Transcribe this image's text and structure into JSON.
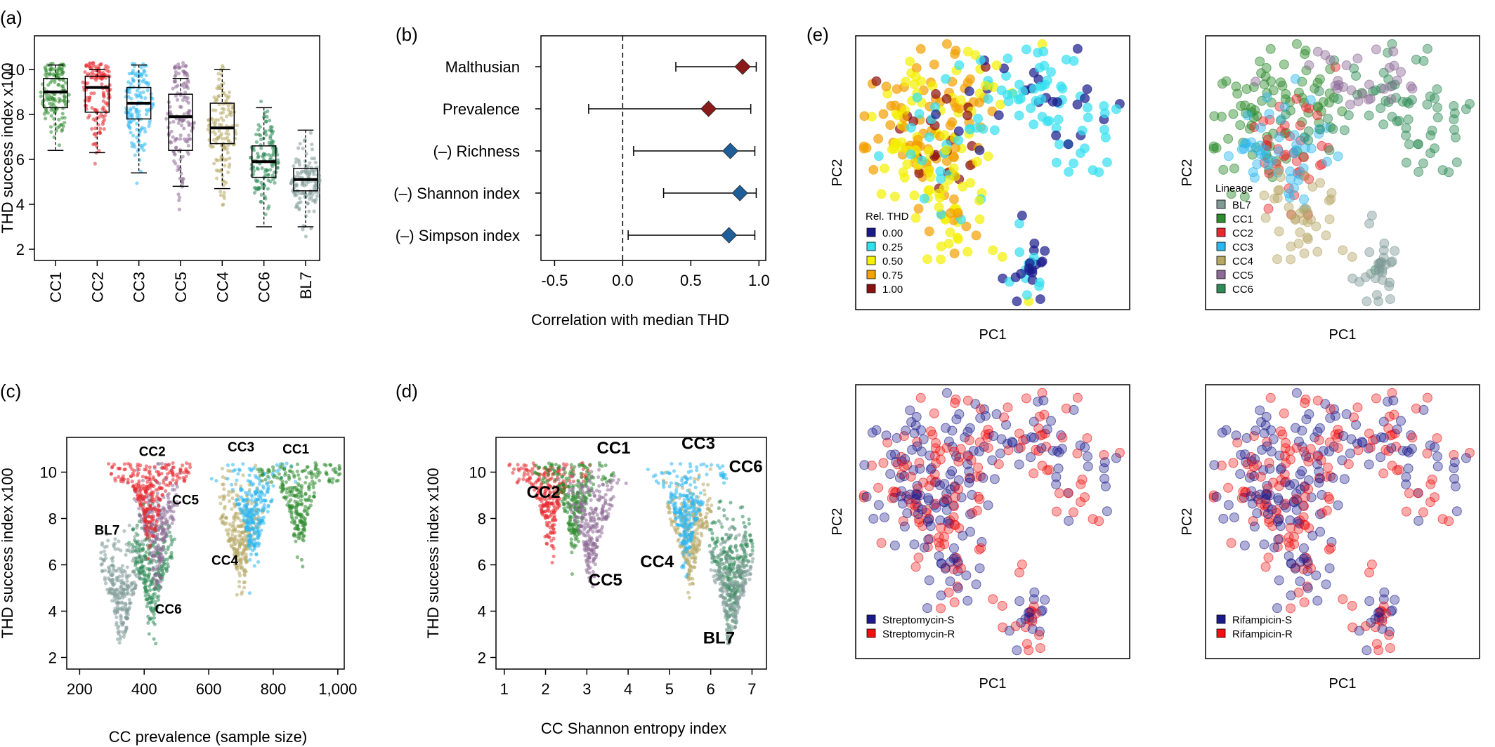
{
  "chart_data": [
    {
      "panel": "(a)",
      "type": "box",
      "ylabel": "THD success index x100",
      "ylim": [
        1.5,
        11.5
      ],
      "yticks": [
        2,
        4,
        6,
        8,
        10
      ],
      "categories": [
        "CC1",
        "CC2",
        "CC3",
        "CC5",
        "CC4",
        "CC6",
        "BL7"
      ],
      "colors": {
        "CC1": "#2e8b2e",
        "CC2": "#e8282d",
        "CC3": "#2cb7f0",
        "CC5": "#8e6b96",
        "CC4": "#b7a765",
        "CC6": "#2e8b57",
        "BL7": "#7f9a97"
      },
      "boxes": [
        {
          "name": "CC1",
          "min": 6.4,
          "q1": 8.3,
          "median": 9.0,
          "q3": 9.6,
          "max": 10.2
        },
        {
          "name": "CC2",
          "min": 6.3,
          "q1": 8.1,
          "median": 9.2,
          "q3": 9.7,
          "max": 10.0
        },
        {
          "name": "CC3",
          "min": 5.4,
          "q1": 7.8,
          "median": 8.5,
          "q3": 9.2,
          "max": 10.2
        },
        {
          "name": "CC5",
          "min": 4.8,
          "q1": 6.4,
          "median": 7.9,
          "q3": 8.9,
          "max": 9.6
        },
        {
          "name": "CC4",
          "min": 4.7,
          "q1": 6.7,
          "median": 7.4,
          "q3": 8.5,
          "max": 10.0
        },
        {
          "name": "CC6",
          "min": 3.0,
          "q1": 5.2,
          "median": 5.9,
          "q3": 6.6,
          "max": 8.3
        },
        {
          "name": "BL7",
          "min": 3.0,
          "q1": 4.6,
          "median": 5.1,
          "q3": 5.6,
          "max": 7.3
        }
      ]
    },
    {
      "panel": "(b)",
      "type": "forest",
      "xlabel": "Correlation with median THD",
      "xlim": [
        -0.6,
        1.05
      ],
      "xticks": [
        -0.5,
        0.0,
        0.5,
        1.0
      ],
      "xticklabels": [
        "-0.5",
        "0.0",
        "0.5",
        "1.0"
      ],
      "rows": [
        {
          "label": "Malthusian",
          "est": 0.88,
          "lo": 0.39,
          "hi": 0.98,
          "color": "#8b1a1a"
        },
        {
          "label": "Prevalence",
          "est": 0.63,
          "lo": -0.25,
          "hi": 0.94,
          "color": "#8b1a1a"
        },
        {
          "label": "(–) Richness",
          "est": 0.79,
          "lo": 0.08,
          "hi": 0.97,
          "color": "#1f5f99"
        },
        {
          "label": "(–) Shannon index",
          "est": 0.86,
          "lo": 0.3,
          "hi": 0.98,
          "color": "#1f5f99"
        },
        {
          "label": "(–) Simpson index",
          "est": 0.78,
          "lo": 0.04,
          "hi": 0.97,
          "color": "#1f5f99"
        }
      ]
    },
    {
      "panel": "(c)",
      "type": "beeswarm",
      "xlabel": "CC prevalence (sample size)",
      "ylabel": "THD success index x100",
      "xlim": [
        160,
        1020
      ],
      "ylim": [
        1.5,
        11.5
      ],
      "xticks": [
        200,
        400,
        600,
        800,
        1000
      ],
      "xticklabels": [
        "200",
        "400",
        "600",
        "800",
        "1,000"
      ],
      "yticks": [
        2,
        4,
        6,
        8,
        10
      ],
      "groups": [
        {
          "name": "BL7",
          "x": 330,
          "median": 5.1,
          "color": "#7f9a97",
          "label_x": 285,
          "label_y": 7.3
        },
        {
          "name": "CC6",
          "x": 425,
          "median": 5.9,
          "color": "#2e8b57",
          "label_x": 475,
          "label_y": 3.9
        },
        {
          "name": "CC5",
          "x": 440,
          "median": 7.9,
          "color": "#8e6b96",
          "label_x": 528,
          "label_y": 8.6
        },
        {
          "name": "CC2",
          "x": 420,
          "median": 9.2,
          "color": "#e8282d",
          "label_x": 425,
          "label_y": 10.7
        },
        {
          "name": "CC4",
          "x": 700,
          "median": 7.4,
          "color": "#b7a765",
          "label_x": 650,
          "label_y": 6.0
        },
        {
          "name": "CC3",
          "x": 740,
          "median": 8.5,
          "color": "#2cb7f0",
          "label_x": 700,
          "label_y": 10.9
        },
        {
          "name": "CC1",
          "x": 880,
          "median": 9.0,
          "color": "#2e8b2e",
          "label_x": 870,
          "label_y": 10.8
        }
      ]
    },
    {
      "panel": "(d)",
      "type": "beeswarm",
      "xlabel": "CC Shannon entropy index",
      "ylabel": "THD success index x100",
      "xlim": [
        0.8,
        7.35
      ],
      "ylim": [
        1.5,
        11.5
      ],
      "xticks": [
        1,
        2,
        3,
        4,
        5,
        6,
        7
      ],
      "yticks": [
        2,
        4,
        6,
        8,
        10
      ],
      "groups": [
        {
          "name": "CC2",
          "x": 2.1,
          "median": 9.2,
          "color": "#e8282d",
          "label_x": 1.95,
          "label_y": 8.9
        },
        {
          "name": "CC1",
          "x": 2.7,
          "median": 9.0,
          "color": "#2e8b2e",
          "label_x": 3.65,
          "label_y": 10.8
        },
        {
          "name": "CC5",
          "x": 3.1,
          "median": 7.9,
          "color": "#8e6b96",
          "label_x": 3.45,
          "label_y": 5.1
        },
        {
          "name": "CC4",
          "x": 5.5,
          "median": 7.4,
          "color": "#b7a765",
          "label_x": 4.7,
          "label_y": 5.9
        },
        {
          "name": "CC3",
          "x": 5.4,
          "median": 8.5,
          "color": "#2cb7f0",
          "label_x": 5.7,
          "label_y": 11.0
        },
        {
          "name": "CC6",
          "x": 6.5,
          "median": 5.9,
          "color": "#2e8b57",
          "label_x": 6.85,
          "label_y": 10.0
        },
        {
          "name": "BL7",
          "x": 6.5,
          "median": 5.1,
          "color": "#7f9a97",
          "label_x": 6.2,
          "label_y": 2.6
        }
      ]
    }
  ],
  "pca": {
    "panel_label": "(e)",
    "xlabel": "PC1",
    "ylabel": "PC2",
    "thd_legend": {
      "title": "Rel. THD",
      "items": [
        {
          "label": "0.00",
          "color": "#1a1a8c"
        },
        {
          "label": "0.25",
          "color": "#33e0f0"
        },
        {
          "label": "0.50",
          "color": "#f4f000"
        },
        {
          "label": "0.75",
          "color": "#f3a000"
        },
        {
          "label": "1.00",
          "color": "#8b1010"
        }
      ]
    },
    "lineage_legend": {
      "title": "Lineage",
      "items": [
        {
          "label": "BL7",
          "color": "#7f9a97"
        },
        {
          "label": "CC1",
          "color": "#2e8b2e"
        },
        {
          "label": "CC2",
          "color": "#e8282d"
        },
        {
          "label": "CC3",
          "color": "#2cb7f0"
        },
        {
          "label": "CC4",
          "color": "#b7a765"
        },
        {
          "label": "CC5",
          "color": "#8e6b96"
        },
        {
          "label": "CC6",
          "color": "#2e8b57"
        }
      ]
    },
    "strep_legend": {
      "items": [
        {
          "label": "Streptomycin-S",
          "color": "#1a1a8c"
        },
        {
          "label": "Streptomycin-R",
          "color": "#f01010"
        }
      ]
    },
    "rif_legend": {
      "items": [
        {
          "label": "Rifampicin-S",
          "color": "#1a1a8c"
        },
        {
          "label": "Rifampicin-R",
          "color": "#f01010"
        }
      ]
    }
  }
}
